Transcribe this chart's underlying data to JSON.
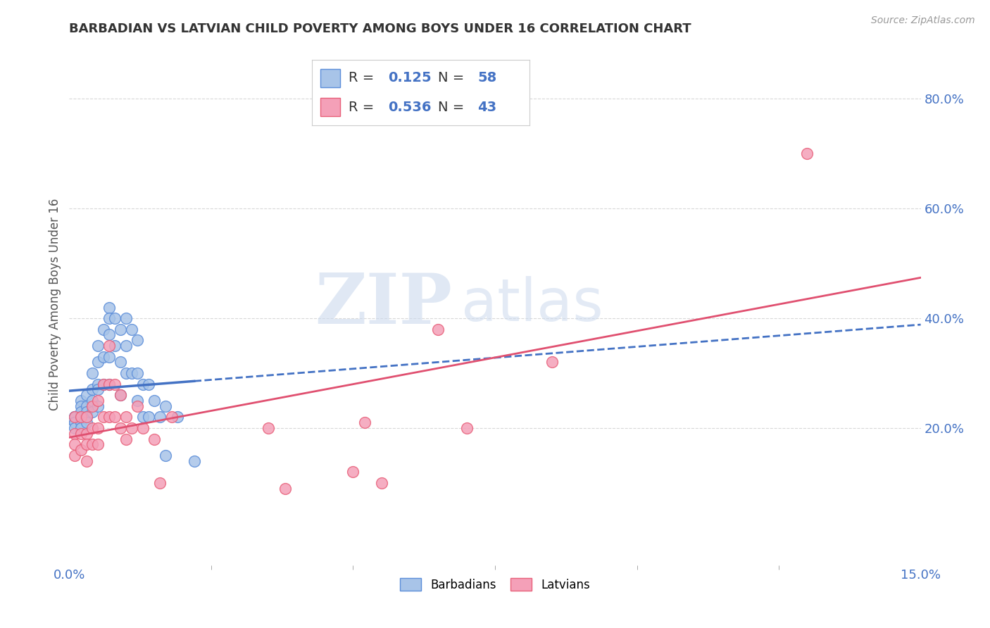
{
  "title": "BARBADIAN VS LATVIAN CHILD POVERTY AMONG BOYS UNDER 16 CORRELATION CHART",
  "source": "Source: ZipAtlas.com",
  "ylabel": "Child Poverty Among Boys Under 16",
  "xlim": [
    0.0,
    0.15
  ],
  "ylim": [
    -0.05,
    0.9
  ],
  "right_yticks": [
    0.2,
    0.4,
    0.6,
    0.8
  ],
  "right_yticklabels": [
    "20.0%",
    "40.0%",
    "60.0%",
    "80.0%"
  ],
  "barbadian_R": 0.125,
  "barbadian_N": 58,
  "latvian_R": 0.536,
  "latvian_N": 43,
  "barbadian_color": "#a8c4e8",
  "latvian_color": "#f4a0b8",
  "barbadian_edge_color": "#5b8dd9",
  "latvian_edge_color": "#e8607a",
  "barbadian_line_color": "#4472c4",
  "latvian_line_color": "#e05070",
  "barbadian_x": [
    0.001,
    0.001,
    0.001,
    0.001,
    0.001,
    0.001,
    0.001,
    0.002,
    0.002,
    0.002,
    0.002,
    0.002,
    0.002,
    0.003,
    0.003,
    0.003,
    0.003,
    0.003,
    0.004,
    0.004,
    0.004,
    0.004,
    0.005,
    0.005,
    0.005,
    0.005,
    0.005,
    0.006,
    0.006,
    0.006,
    0.007,
    0.007,
    0.007,
    0.007,
    0.007,
    0.008,
    0.008,
    0.009,
    0.009,
    0.009,
    0.01,
    0.01,
    0.01,
    0.011,
    0.011,
    0.012,
    0.012,
    0.012,
    0.013,
    0.013,
    0.014,
    0.014,
    0.015,
    0.016,
    0.017,
    0.017,
    0.019,
    0.022
  ],
  "barbadian_y": [
    0.22,
    0.22,
    0.22,
    0.21,
    0.21,
    0.21,
    0.2,
    0.25,
    0.24,
    0.23,
    0.22,
    0.21,
    0.2,
    0.26,
    0.24,
    0.23,
    0.22,
    0.21,
    0.3,
    0.27,
    0.25,
    0.23,
    0.35,
    0.32,
    0.28,
    0.27,
    0.24,
    0.38,
    0.33,
    0.28,
    0.42,
    0.4,
    0.37,
    0.33,
    0.28,
    0.4,
    0.35,
    0.38,
    0.32,
    0.26,
    0.4,
    0.35,
    0.3,
    0.38,
    0.3,
    0.36,
    0.3,
    0.25,
    0.28,
    0.22,
    0.28,
    0.22,
    0.25,
    0.22,
    0.24,
    0.15,
    0.22,
    0.14
  ],
  "latvian_x": [
    0.001,
    0.001,
    0.001,
    0.001,
    0.002,
    0.002,
    0.002,
    0.003,
    0.003,
    0.003,
    0.003,
    0.004,
    0.004,
    0.004,
    0.005,
    0.005,
    0.005,
    0.006,
    0.006,
    0.007,
    0.007,
    0.007,
    0.008,
    0.008,
    0.009,
    0.009,
    0.01,
    0.01,
    0.011,
    0.012,
    0.013,
    0.015,
    0.016,
    0.018,
    0.035,
    0.038,
    0.05,
    0.052,
    0.055,
    0.065,
    0.07,
    0.085,
    0.13
  ],
  "latvian_y": [
    0.22,
    0.19,
    0.17,
    0.15,
    0.22,
    0.19,
    0.16,
    0.22,
    0.19,
    0.17,
    0.14,
    0.24,
    0.2,
    0.17,
    0.25,
    0.2,
    0.17,
    0.28,
    0.22,
    0.35,
    0.28,
    0.22,
    0.28,
    0.22,
    0.26,
    0.2,
    0.22,
    0.18,
    0.2,
    0.24,
    0.2,
    0.18,
    0.1,
    0.22,
    0.2,
    0.09,
    0.12,
    0.21,
    0.1,
    0.38,
    0.2,
    0.32,
    0.7
  ],
  "watermark_zip": "ZIP",
  "watermark_atlas": "atlas",
  "background_color": "#ffffff",
  "grid_color": "#d8d8d8"
}
